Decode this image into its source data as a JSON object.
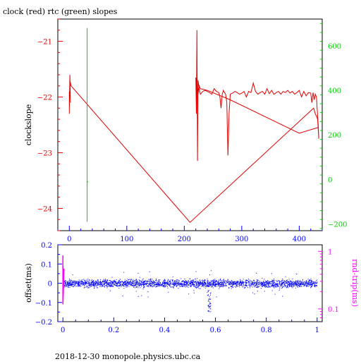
{
  "footer": "2018-12-30  monopole.physics.ubc.ca",
  "colors": {
    "clock": "#e00000",
    "rtc": "#00d000",
    "offset": "#0000ff",
    "rndtrip": "#ff00ff",
    "frame": "#000000"
  },
  "chart_data": [
    {
      "type": "line",
      "title": "clock (red) rtc (green) slopes",
      "ylabel": "clockslope",
      "xlim": [
        -20,
        440
      ],
      "ylim": [
        -24.4,
        -20.6
      ],
      "y2lim": [
        -230,
        720
      ],
      "xticks": [
        0,
        100,
        200,
        300,
        400
      ],
      "yticks": [
        -24,
        -23,
        -22,
        -21
      ],
      "y2ticks": [
        -200,
        0,
        200,
        400,
        600
      ],
      "series": [
        {
          "axis": "left",
          "x": [
            0,
            0,
            1,
            2,
            1,
            3,
            210,
            425,
            428,
            432,
            434,
            433,
            430,
            428,
            426,
            424,
            422,
            420,
            416,
            412,
            408,
            404,
            400,
            396,
            392,
            388,
            384,
            380,
            376,
            372,
            368,
            364,
            360,
            356,
            352,
            348,
            344,
            340,
            336,
            332,
            328,
            324,
            320,
            316,
            312,
            308,
            304,
            300,
            296,
            292,
            288,
            284,
            280,
            278,
            276,
            275,
            274,
            272,
            270,
            268,
            266,
            264,
            262,
            260,
            256,
            252,
            248,
            244,
            240,
            236,
            232,
            228,
            226,
            224,
            223,
            222,
            221,
            220,
            222,
            224,
            226,
            228,
            240,
            280,
            340,
            400,
            432
          ],
          "y": [
            -21.9,
            -22.3,
            -21.6,
            -22.1,
            -21.7,
            -21.8,
            -24.25,
            -22.2,
            -22.3,
            -22.4,
            -22.75,
            -22.5,
            -22.0,
            -21.95,
            -22.05,
            -21.92,
            -22.1,
            -21.93,
            -21.92,
            -21.98,
            -21.9,
            -22.0,
            -21.88,
            -21.92,
            -21.95,
            -21.9,
            -21.93,
            -21.88,
            -21.92,
            -21.9,
            -21.95,
            -21.9,
            -21.92,
            -21.95,
            -21.88,
            -21.94,
            -21.85,
            -21.95,
            -21.9,
            -21.92,
            -21.95,
            -21.9,
            -21.75,
            -21.92,
            -21.9,
            -22.0,
            -21.9,
            -21.93,
            -21.95,
            -21.92,
            -21.9,
            -21.93,
            -21.95,
            -22.3,
            -23.05,
            -22.6,
            -22.1,
            -21.95,
            -21.92,
            -21.88,
            -21.95,
            -22.2,
            -22.0,
            -21.92,
            -21.9,
            -21.85,
            -21.95,
            -21.92,
            -21.9,
            -21.88,
            -21.9,
            -21.95,
            -21.85,
            -21.7,
            -23.15,
            -20.8,
            -22.3,
            -21.65,
            -21.8,
            -21.95,
            -21.8,
            -21.85,
            -21.88,
            -22.05,
            -22.35,
            -22.65,
            -22.55
          ]
        },
        {
          "axis": "right",
          "x": [
            31,
            31,
            31,
            31,
            32,
            31
          ],
          "y": [
            680,
            -190,
            -10,
            -15,
            -10,
            -10
          ]
        }
      ]
    },
    {
      "type": "scatter",
      "ylabel": "offset(ms)",
      "y2label": "rnd-trip(ms)",
      "xlim": [
        -0.02,
        1.02
      ],
      "ylim": [
        -0.2,
        0.2
      ],
      "y2lim": [
        0.06,
        1.3
      ],
      "y2scale": "log",
      "xticks": [
        0,
        0.2,
        0.4,
        0.6,
        0.8,
        1
      ],
      "yticks": [
        -0.2,
        -0.1,
        0,
        0.1,
        0.2
      ],
      "y2ticks": [
        0.1,
        1
      ],
      "series": [
        {
          "name": "offset",
          "axis": "left",
          "center": 0.0,
          "band": 0.03,
          "x_range": [
            0,
            1
          ],
          "dip": {
            "x": 0.575,
            "y_min": -0.15
          },
          "spike": {
            "x": 0.0,
            "y_max": 0.1
          }
        },
        {
          "name": "rnd-trip",
          "axis": "right",
          "x": [
            0.0,
            0.0,
            0.002,
            0.003,
            0.004
          ],
          "y": [
            0.85,
            0.12,
            0.2,
            0.35,
            0.5
          ]
        }
      ]
    }
  ]
}
